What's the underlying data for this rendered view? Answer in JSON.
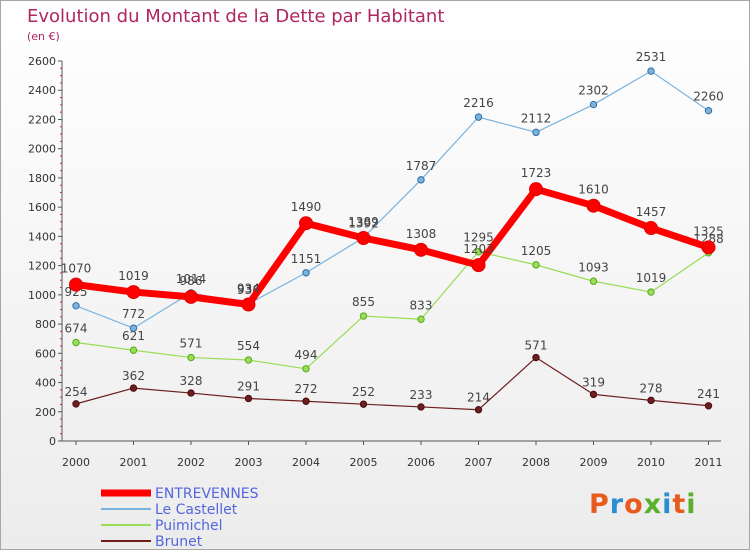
{
  "header": {
    "title": "Evolution du Montant de la Dette par Habitant",
    "subtitle": "(en €)"
  },
  "brand": {
    "name": "Proxiti",
    "colors": [
      "#e85a1d",
      "#2a8ed0",
      "#e85a1d",
      "#5ab02c",
      "#2a8ed0",
      "#e85a1d",
      "#5ab02c"
    ]
  },
  "chart_data": {
    "type": "line",
    "title": "Evolution du Montant de la Dette par Habitant",
    "subtitle": "(en €)",
    "xlabel": "",
    "ylabel": "",
    "ylim": [
      0,
      2600
    ],
    "yticks": [
      0,
      200,
      400,
      600,
      800,
      1000,
      1200,
      1400,
      1600,
      1800,
      2000,
      2200,
      2400,
      2600
    ],
    "grid": false,
    "legend_position": "bottom-left",
    "categories": [
      "2000",
      "2001",
      "2002",
      "2003",
      "2004",
      "2005",
      "2006",
      "2007",
      "2008",
      "2009",
      "2010",
      "2011"
    ],
    "series": [
      {
        "name": "Brunet",
        "color": "#6e1e1e",
        "values": [
          254,
          362,
          328,
          291,
          272,
          252,
          233,
          214,
          571,
          319,
          278,
          241
        ]
      },
      {
        "name": "Puimichel",
        "color": "#99dd55",
        "values": [
          674,
          621,
          571,
          554,
          494,
          855,
          833,
          1295,
          1205,
          1093,
          1019,
          1288
        ]
      },
      {
        "name": "Le Castellet",
        "color": "#7ab3dd",
        "values": [
          925,
          772,
          1014,
          938,
          1151,
          1392,
          1787,
          2216,
          2112,
          2302,
          2531,
          2260
        ]
      },
      {
        "name": "ENTREVENNES",
        "color": "#ff0000",
        "values": [
          1070,
          1019,
          986,
          934,
          1490,
          1389,
          1308,
          1203,
          1723,
          1610,
          1457,
          1325
        ]
      }
    ]
  }
}
